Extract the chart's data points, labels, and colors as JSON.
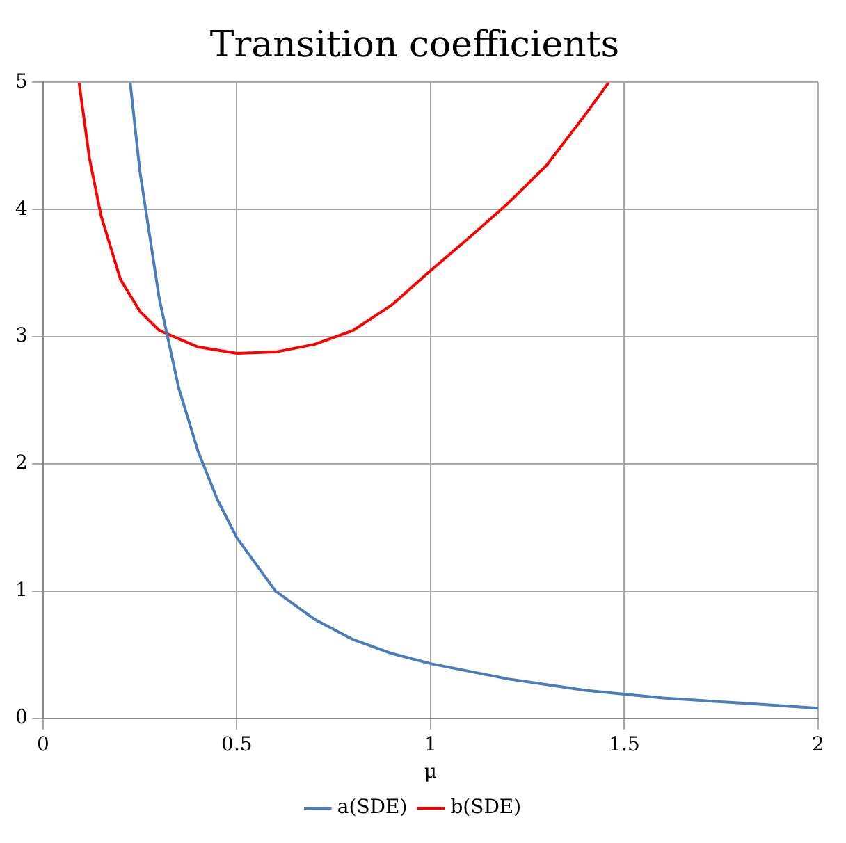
{
  "chart_data": {
    "type": "line",
    "title": "Transition coefficients",
    "xlabel": "μ",
    "xlim": [
      0,
      2
    ],
    "xticks": [
      0,
      0.5,
      1,
      1.5,
      2
    ],
    "ylim": [
      0,
      5
    ],
    "yticks": [
      0,
      1,
      2,
      3,
      4,
      5
    ],
    "grid": true,
    "legend": "bottom",
    "marker": "none",
    "line_style": "solid",
    "series": [
      {
        "name": "a(SDE)",
        "color": "#4a7ebb",
        "x": [
          0.225,
          0.25,
          0.3,
          0.35,
          0.4,
          0.45,
          0.5,
          0.6,
          0.7,
          0.8,
          0.9,
          1.0,
          1.2,
          1.4,
          1.5,
          1.6,
          1.8,
          2.0
        ],
        "values": [
          5,
          4.3,
          3.3,
          2.6,
          2.1,
          1.72,
          1.42,
          1.0,
          0.78,
          0.62,
          0.51,
          0.43,
          0.31,
          0.22,
          0.19,
          0.16,
          0.12,
          0.08
        ]
      },
      {
        "name": "b(SDE)",
        "color": "#ff0000",
        "x": [
          0.093,
          0.12,
          0.15,
          0.2,
          0.25,
          0.3,
          0.4,
          0.5,
          0.6,
          0.7,
          0.8,
          0.9,
          1.0,
          1.1,
          1.2,
          1.3,
          1.4,
          1.46
        ],
        "values": [
          5,
          4.4,
          3.95,
          3.45,
          3.2,
          3.05,
          2.92,
          2.87,
          2.88,
          2.94,
          3.05,
          3.25,
          3.52,
          3.78,
          4.05,
          4.35,
          4.75,
          5
        ]
      }
    ]
  }
}
